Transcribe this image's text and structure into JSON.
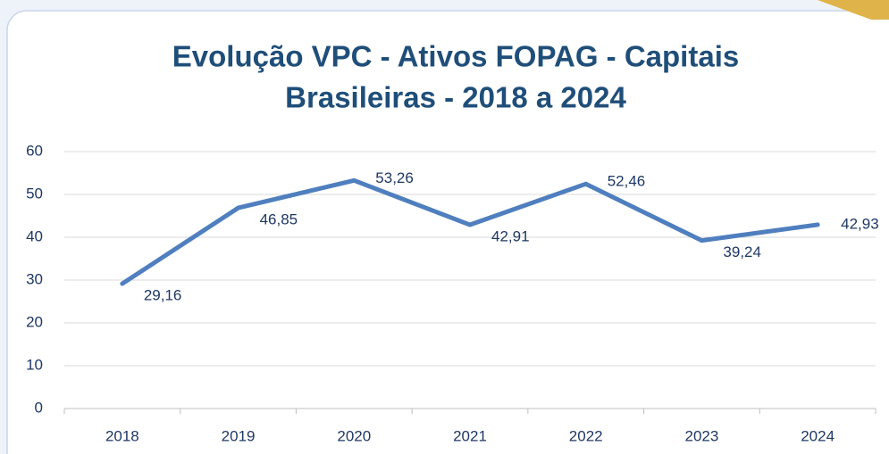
{
  "chart_data": {
    "type": "line",
    "title": [
      "Evolução VPC - Ativos FOPAG - Capitais",
      "Brasileiras - 2018 a 2024"
    ],
    "categories": [
      "2018",
      "2019",
      "2020",
      "2021",
      "2022",
      "2023",
      "2024"
    ],
    "series": [
      {
        "name": "VPC",
        "color": "#4f7fbe",
        "values": [
          29.16,
          46.85,
          53.26,
          42.91,
          52.46,
          39.24,
          42.93
        ],
        "value_labels": [
          "29,16",
          "46,85",
          "53,26",
          "42,91",
          "52,46",
          "39,24",
          "42,93"
        ]
      }
    ],
    "ylim": [
      0,
      60
    ],
    "yticks": [
      0,
      10,
      20,
      30,
      40,
      50,
      60
    ],
    "grid": true
  }
}
